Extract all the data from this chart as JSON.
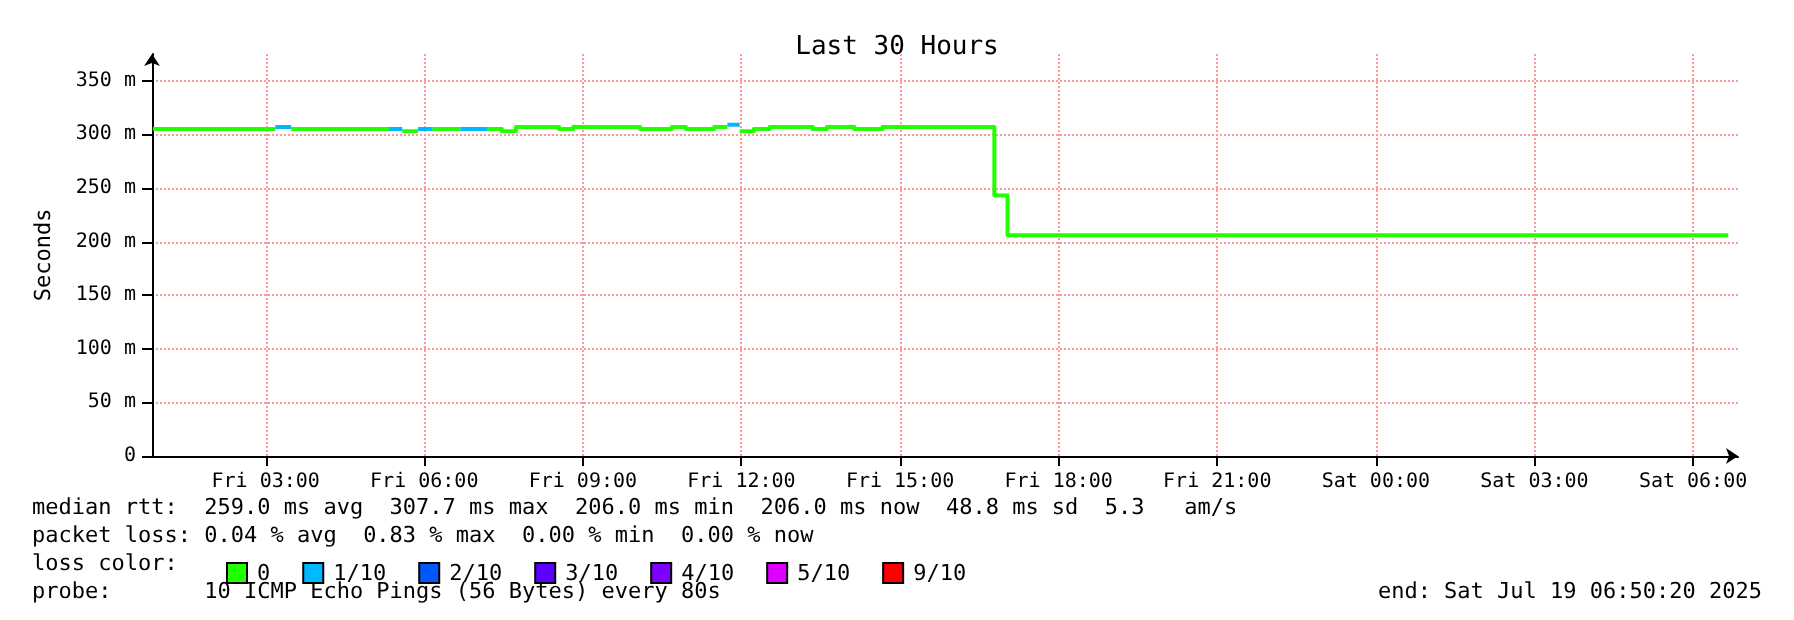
{
  "chart_data": {
    "type": "line",
    "title": "Last 30 Hours",
    "ylabel": "Seconds",
    "legend_title": "loss color:",
    "xlim": [
      "2025-07-18T00:51",
      "2025-07-19T06:51"
    ],
    "xticks": [
      {
        "value": "2025-07-18T03:00",
        "label": "Fri 03:00"
      },
      {
        "value": "2025-07-18T06:00",
        "label": "Fri 06:00"
      },
      {
        "value": "2025-07-18T09:00",
        "label": "Fri 09:00"
      },
      {
        "value": "2025-07-18T12:00",
        "label": "Fri 12:00"
      },
      {
        "value": "2025-07-18T15:00",
        "label": "Fri 15:00"
      },
      {
        "value": "2025-07-18T18:00",
        "label": "Fri 18:00"
      },
      {
        "value": "2025-07-18T21:00",
        "label": "Fri 21:00"
      },
      {
        "value": "2025-07-19T00:00",
        "label": "Sat 00:00"
      },
      {
        "value": "2025-07-19T03:00",
        "label": "Sat 03:00"
      },
      {
        "value": "2025-07-19T06:00",
        "label": "Sat 06:00"
      }
    ],
    "ylim": [
      0,
      375
    ],
    "yticks": [
      0,
      {
        "value": 50,
        "label": "50 m"
      },
      {
        "value": 100,
        "label": "100 m"
      },
      {
        "value": 150,
        "label": "150 m"
      },
      {
        "value": 200,
        "label": "200 m"
      },
      {
        "value": 250,
        "label": "250 m"
      },
      {
        "value": 300,
        "label": "300 m"
      },
      {
        "value": 350,
        "label": "350 m"
      }
    ],
    "grid": true,
    "legend": "bottom left",
    "marker": "none",
    "line_style": "solid",
    "series": [
      {
        "name": "0",
        "color": "#22ff00",
        "x": [
          "2025-07-18T00:52",
          "2025-07-18T03:11",
          null,
          "2025-07-18T03:29",
          "2025-07-18T05:20",
          null,
          "2025-07-18T05:35",
          "2025-07-18T05:53",
          null,
          "2025-07-18T06:09",
          "2025-07-18T06:41",
          null,
          "2025-07-18T07:12",
          "2025-07-18T07:28",
          "2025-07-18T07:28",
          "2025-07-18T07:44",
          "2025-07-18T07:44",
          "2025-07-18T08:33",
          "2025-07-18T08:33",
          "2025-07-18T08:49",
          "2025-07-18T08:49",
          "2025-07-18T10:05",
          "2025-07-18T10:05",
          "2025-07-18T10:41",
          "2025-07-18T10:41",
          "2025-07-18T10:57",
          "2025-07-18T10:57",
          "2025-07-18T11:29",
          "2025-07-18T11:29",
          "2025-07-18T11:44",
          null,
          "2025-07-18T11:58",
          "2025-07-18T12:14",
          "2025-07-18T12:14",
          "2025-07-18T12:32",
          "2025-07-18T12:32",
          "2025-07-18T13:21",
          "2025-07-18T13:21",
          "2025-07-18T13:37",
          "2025-07-18T13:37",
          "2025-07-18T14:08",
          "2025-07-18T14:08",
          "2025-07-18T14:40",
          "2025-07-18T14:40",
          "2025-07-18T16:47",
          "2025-07-18T16:47",
          "2025-07-18T17:02",
          "2025-07-18T17:02",
          "2025-07-19T06:40"
        ],
        "values": [
          305,
          305,
          null,
          305,
          305,
          null,
          303,
          303,
          null,
          305,
          305,
          null,
          305,
          305,
          303,
          303,
          307,
          307,
          305,
          305,
          307,
          307,
          305,
          305,
          307,
          307,
          305,
          305,
          307,
          307,
          null,
          303,
          303,
          305,
          305,
          307,
          307,
          305,
          305,
          307,
          307,
          305,
          305,
          307,
          307,
          243,
          243,
          206,
          206
        ]
      },
      {
        "name": "1/10",
        "color": "#00b8ff",
        "x": [
          "2025-07-18T03:11",
          "2025-07-18T03:29",
          null,
          "2025-07-18T05:20",
          "2025-07-18T05:35",
          null,
          "2025-07-18T05:53",
          "2025-07-18T06:09",
          null,
          "2025-07-18T06:41",
          "2025-07-18T07:12",
          null,
          "2025-07-18T11:44",
          "2025-07-18T11:58"
        ],
        "values": [
          307,
          307,
          null,
          305,
          305,
          null,
          305,
          305,
          null,
          305,
          305,
          null,
          309,
          309
        ]
      },
      {
        "name": "2/10",
        "color": "#0059ff"
      },
      {
        "name": "3/10",
        "color": "#5e00ff"
      },
      {
        "name": "4/10",
        "color": "#7e00ff"
      },
      {
        "name": "5/10",
        "color": "#dd00ff"
      },
      {
        "name": "9/10",
        "color": "#ff0000"
      }
    ],
    "annotations": [
      "median rtt:  259.0 ms avg  307.7 ms max  206.0 ms min  206.0 ms now  48.8 ms sd  5.3   am/s",
      "packet loss: 0.04 % avg  0.83 % max  0.00 % min  0.00 % now",
      "probe:       10 ICMP Echo Pings (56 Bytes) every 80s",
      "end: Sat Jul 19 06:50:20 2025"
    ]
  }
}
